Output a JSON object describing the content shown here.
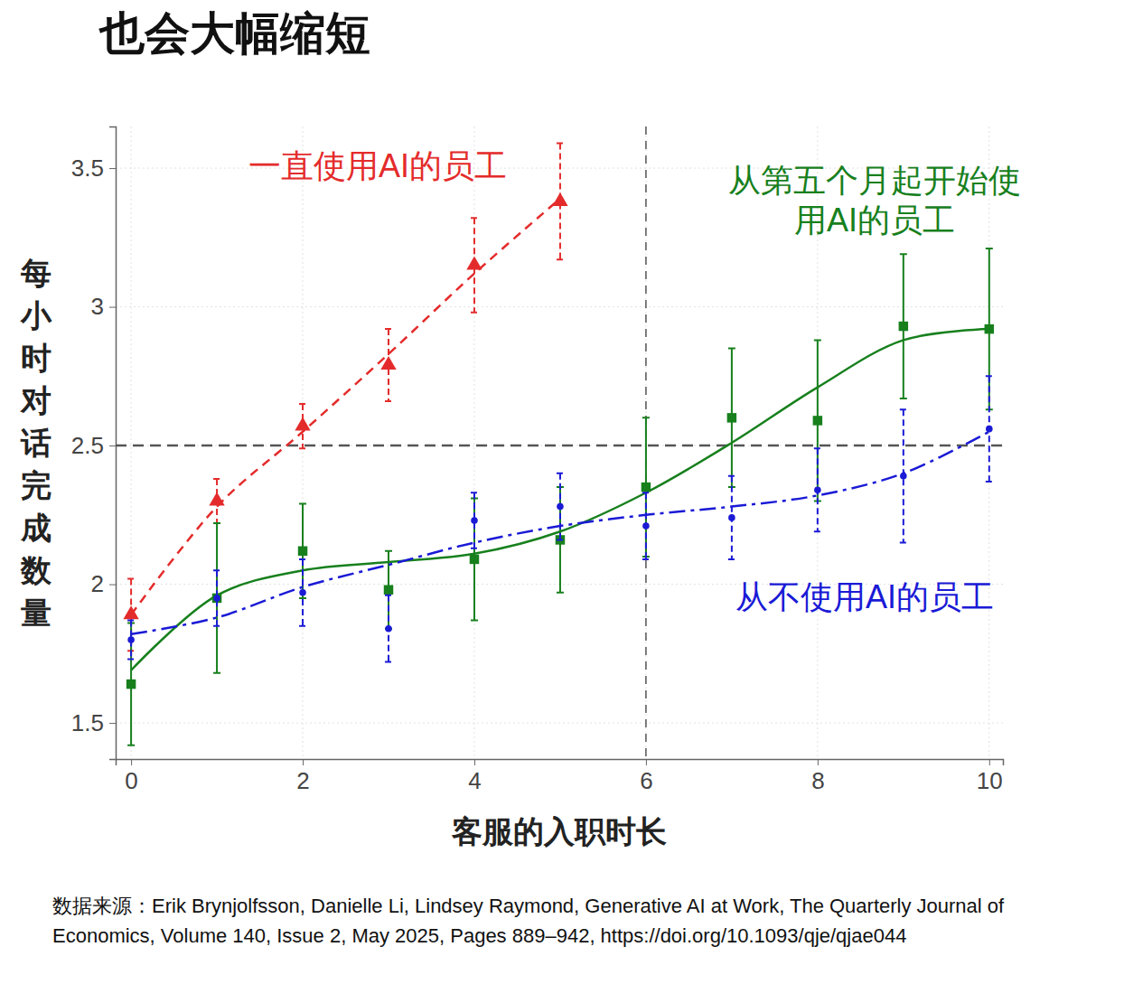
{
  "chart_data": {
    "type": "line",
    "title": "也会大幅缩短",
    "x_label": "客服的入职时长",
    "y_label": "每小时对话完成数量",
    "source": "数据来源：Erik Brynjolfsson, Danielle Li, Lindsey Raymond, Generative AI at Work, The Quarterly Journal of Economics, Volume 140, Issue 2, May 2025, Pages 889–942, https://doi.org/10.1093/qje/qjae044",
    "x": [
      0,
      1,
      2,
      3,
      4,
      5,
      6,
      7,
      8,
      9,
      10
    ],
    "xlim": [
      -0.18,
      10.16
    ],
    "xticks": [
      0,
      2,
      4,
      6,
      8,
      10
    ],
    "ylim": [
      1.37,
      3.65
    ],
    "yticks": [
      1.5,
      2,
      2.5,
      3,
      3.5
    ],
    "grid": true,
    "hline": 2.5,
    "vline": 6,
    "series": [
      {
        "name": "一直使用AI的员工",
        "color": "#e42b2b",
        "marker": "triangle",
        "line_style": "dashed",
        "values": [
          1.89,
          2.3,
          2.57,
          2.79,
          3.15,
          3.38,
          null,
          null,
          null,
          null,
          null
        ],
        "errors": [
          0.13,
          0.08,
          0.08,
          0.13,
          0.17,
          0.21,
          null,
          null,
          null,
          null,
          null
        ],
        "fit": [
          1.89,
          2.28,
          2.55,
          2.83,
          3.12,
          3.39,
          null,
          null,
          null,
          null,
          null
        ]
      },
      {
        "name": "从第五个月起开始使用AI的员工",
        "color": "#17801d",
        "marker": "square",
        "line_style": "solid",
        "values": [
          1.64,
          1.95,
          2.12,
          1.98,
          2.09,
          2.16,
          2.35,
          2.6,
          2.59,
          2.93,
          2.92
        ],
        "errors": [
          0.22,
          0.27,
          0.17,
          0.14,
          0.22,
          0.19,
          0.25,
          0.25,
          0.29,
          0.26,
          0.29
        ],
        "fit": [
          1.69,
          1.96,
          2.05,
          2.08,
          2.11,
          2.19,
          2.33,
          2.51,
          2.71,
          2.88,
          2.92
        ]
      },
      {
        "name": "从不使用AI的员工",
        "color": "#1a1ad6",
        "marker": "circle",
        "line_style": "dashdot",
        "values": [
          1.8,
          1.95,
          1.97,
          1.84,
          2.23,
          2.28,
          2.21,
          2.24,
          2.34,
          2.39,
          2.56
        ],
        "errors": [
          0.07,
          0.1,
          0.12,
          0.12,
          0.1,
          0.12,
          0.12,
          0.15,
          0.15,
          0.24,
          0.19
        ],
        "fit": [
          1.82,
          1.88,
          1.99,
          2.07,
          2.15,
          2.21,
          2.25,
          2.28,
          2.32,
          2.4,
          2.55
        ]
      }
    ]
  }
}
